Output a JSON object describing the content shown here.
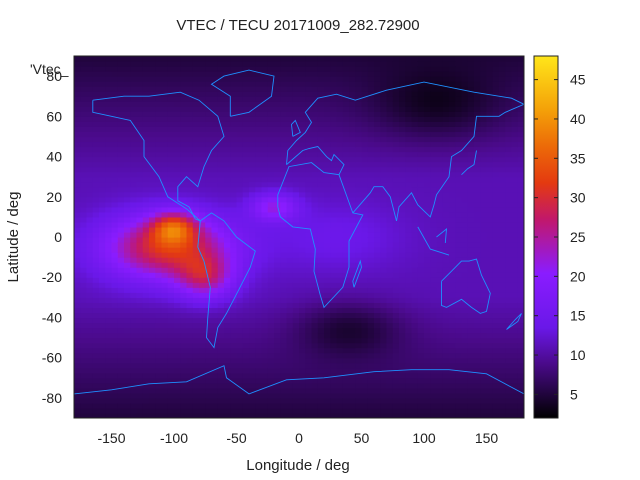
{
  "chart_data": {
    "type": "heatmap",
    "title": "VTEC / TECU 20171009_282.72900",
    "xlabel": "Longitude / deg",
    "ylabel": "Latitude / deg",
    "legend_key": "'Vtec_",
    "xlim": [
      -180,
      180
    ],
    "ylim": [
      -90,
      90
    ],
    "xticks": [
      -150,
      -100,
      -50,
      0,
      50,
      100,
      150
    ],
    "yticks": [
      -80,
      -60,
      -40,
      -20,
      0,
      20,
      40,
      60,
      80
    ],
    "colorbar": {
      "min": 2,
      "max": 48,
      "ticks": [
        5,
        10,
        15,
        20,
        25,
        30,
        35,
        40,
        45
      ],
      "colormap": "black-purple-blue-red-orange-yellow"
    },
    "grid": false,
    "overlay": "coastlines",
    "coastline_color": "#1e90ff",
    "value_model": {
      "background_tecu": 11,
      "enhancement_region": {
        "lon_range": [
          -175,
          -40
        ],
        "lat_range": [
          -35,
          20
        ],
        "peak_value_tecu": 47,
        "peak_location": {
          "lon": -100,
          "lat": 5
        }
      },
      "minimum_value_tecu": 3
    }
  }
}
